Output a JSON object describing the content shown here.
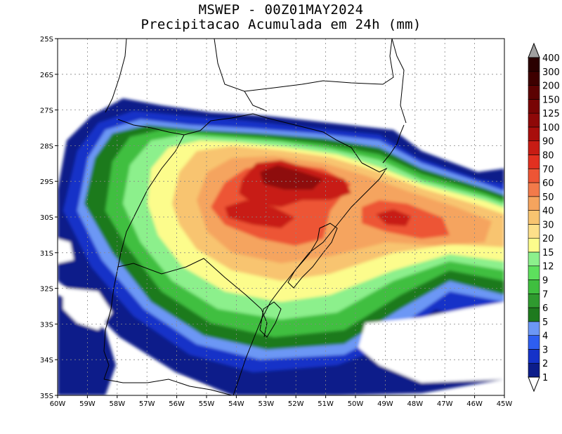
{
  "title": {
    "line1": "MSWEP - 00Z01MAY2024",
    "line2": "Precipitacao Acumulada em 24h (mm)"
  },
  "map": {
    "lon_range": [
      -60,
      -45
    ],
    "lat_range": [
      -35,
      -25
    ],
    "lon_ticks": [
      "60W",
      "59W",
      "58W",
      "57W",
      "56W",
      "55W",
      "54W",
      "53W",
      "52W",
      "51W",
      "50W",
      "49W",
      "48W",
      "47W",
      "46W",
      "45W"
    ],
    "lat_ticks": [
      "25S",
      "26S",
      "27S",
      "28S",
      "29S",
      "30S",
      "31S",
      "32S",
      "33S",
      "34S",
      "35S"
    ],
    "grid": "dotted"
  },
  "colorbar": {
    "levels": [
      "1",
      "2",
      "3",
      "4",
      "5",
      "6",
      "7",
      "9",
      "12",
      "15",
      "20",
      "30",
      "40",
      "50",
      "60",
      "70",
      "80",
      "90",
      "100",
      "125",
      "150",
      "200",
      "300",
      "400"
    ],
    "colors": [
      "#0c1d8a",
      "#1532c8",
      "#2e5ef0",
      "#6c97f5",
      "#1e7a1e",
      "#2f9a2f",
      "#3fbf3f",
      "#5de05d",
      "#8cf08c",
      "#fcfc8c",
      "#fde08a",
      "#f8c470",
      "#f5a45e",
      "#f27a4a",
      "#ed5535",
      "#e23020",
      "#c81c14",
      "#a80e0c",
      "#8e0808",
      "#780404",
      "#5c0202",
      "#3e0000",
      "#2a0000"
    ],
    "over_color": "#a0a0a0",
    "under_color": "#ffffff"
  }
}
